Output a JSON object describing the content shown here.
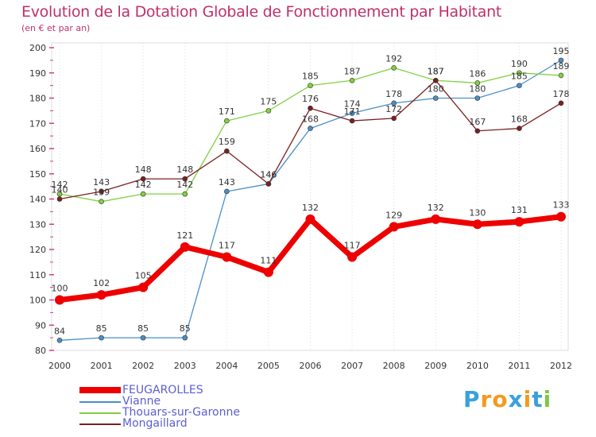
{
  "chart_data": {
    "type": "line",
    "title": "Evolution de la Dotation Globale de Fonctionnement par Habitant",
    "subtitle": "(en € et par an)",
    "x": [
      "2000",
      "2001",
      "2002",
      "2003",
      "2004",
      "2005",
      "2006",
      "2007",
      "2008",
      "2009",
      "2010",
      "2011",
      "2012"
    ],
    "ylim": [
      80,
      200
    ],
    "yticks": [
      80,
      90,
      100,
      110,
      120,
      130,
      140,
      150,
      160,
      170,
      180,
      190,
      200
    ],
    "grid": "dotted-vertical",
    "series": [
      {
        "name": "Vianne",
        "color": "#4a8ec8",
        "values": [
          84,
          85,
          85,
          85,
          143,
          146,
          168,
          174,
          178,
          180,
          180,
          185,
          195
        ],
        "labels": [
          "84",
          "85",
          "85",
          "85",
          "143",
          "146",
          "168",
          "174",
          "178",
          "180",
          "180",
          "185",
          "195"
        ]
      },
      {
        "name": "Thouars-sur-Garonne",
        "color": "#80d040",
        "values": [
          142,
          139,
          142,
          142,
          171,
          175,
          185,
          187,
          192,
          187,
          186,
          190,
          189
        ],
        "labels": [
          "142",
          "139",
          "142",
          "142",
          "171",
          "175",
          "185",
          "187",
          "192",
          "187",
          "186",
          "190",
          "189"
        ]
      },
      {
        "name": "Mongaillard",
        "color": "#7a2020",
        "values": [
          140,
          143,
          148,
          148,
          159,
          146,
          176,
          171,
          172,
          187,
          167,
          168,
          178
        ],
        "labels": [
          "140",
          "143",
          "148",
          "148",
          "159",
          "146",
          "176",
          "171",
          "172",
          "187",
          "167",
          "168",
          "178"
        ]
      },
      {
        "name": "FEUGAROLLES",
        "color": "#ee0000",
        "values": [
          100,
          102,
          105,
          121,
          117,
          111,
          132,
          117,
          129,
          132,
          130,
          131,
          133
        ],
        "labels": [
          "100",
          "102",
          "105",
          "121",
          "117",
          "111",
          "132",
          "117",
          "129",
          "132",
          "130",
          "131",
          "133"
        ]
      }
    ],
    "legend": {
      "placement": "bottom-left",
      "items": [
        {
          "name": "FEUGAROLLES",
          "color": "#ee0000"
        },
        {
          "name": "Vianne",
          "color": "#4a8ec8"
        },
        {
          "name": "Thouars-sur-Garonne",
          "color": "#80d040"
        },
        {
          "name": "Mongaillard",
          "color": "#7a2020"
        }
      ]
    }
  },
  "logo": {
    "letters": [
      "P",
      "r",
      "o",
      "x",
      "i",
      "t",
      "i"
    ],
    "colors": [
      "#3aa0dc",
      "#f29a1f",
      "#f29a1f",
      "#3aa0dc",
      "#f29a1f",
      "#3aa0dc",
      "#7ac943"
    ]
  }
}
